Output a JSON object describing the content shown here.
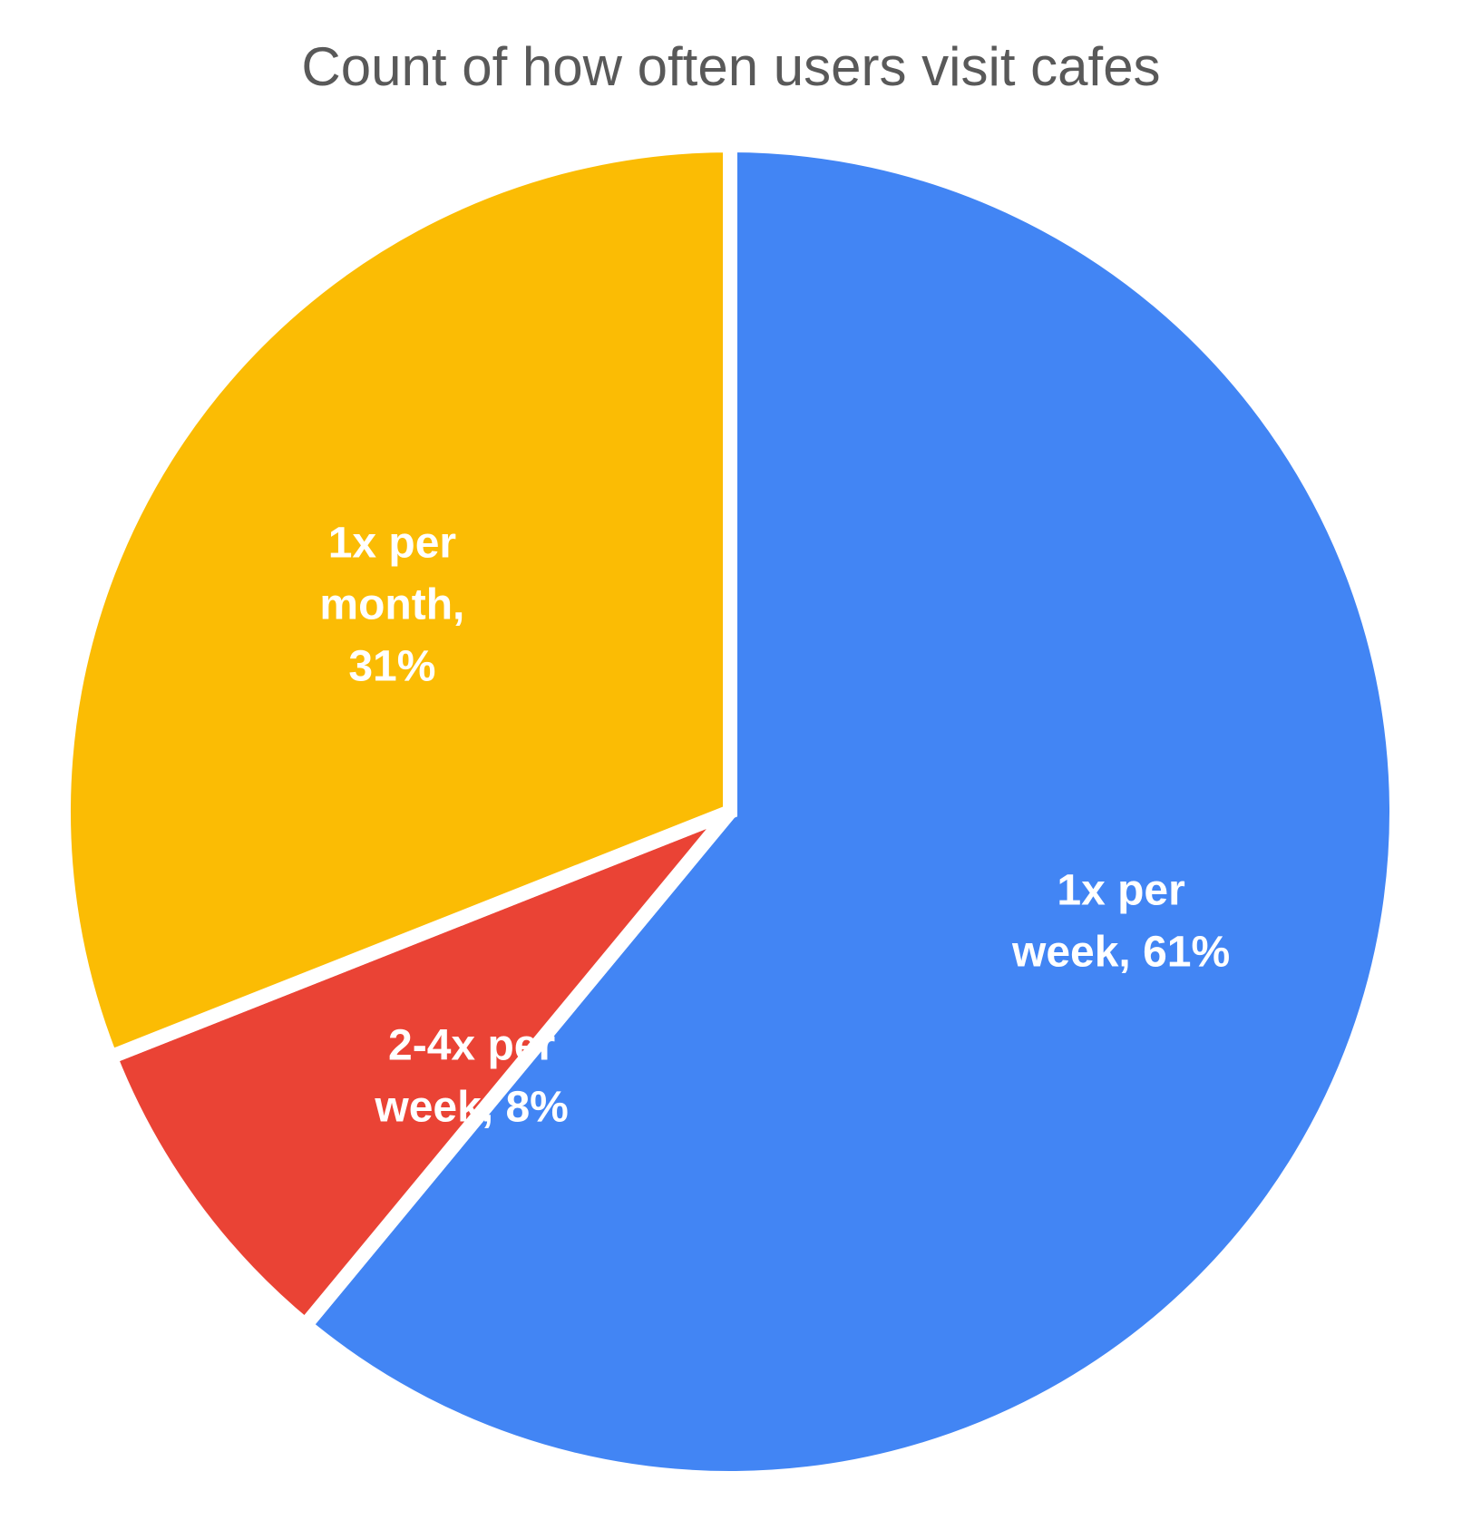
{
  "chart_data": {
    "type": "pie",
    "title": "Count of how often users visit cafes",
    "start_angle_deg": 0,
    "direction": "clockwise",
    "slices": [
      {
        "name": "1x per week",
        "value": 61,
        "color": "#4285F4",
        "label_lines": [
          "1x per",
          "week, 61%"
        ]
      },
      {
        "name": "2-4x per week",
        "value": 8,
        "color": "#EA4335",
        "label_lines": [
          "2-4x per",
          "week, 8%"
        ]
      },
      {
        "name": "1x per month",
        "value": 31,
        "color": "#FBBC04",
        "label_lines": [
          "1x per",
          "month,",
          "31%"
        ]
      }
    ]
  }
}
